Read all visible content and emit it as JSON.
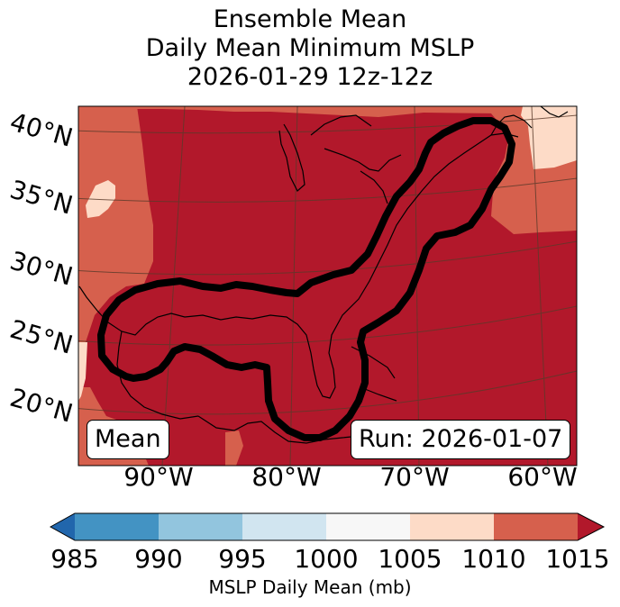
{
  "title": {
    "line1": "Ensemble Mean",
    "line2": "Daily Mean Minimum MSLP",
    "line3": "2026-01-29 12z-12z"
  },
  "map": {
    "lat_labels": [
      "40°N",
      "35°N",
      "30°N",
      "25°N",
      "20°N"
    ],
    "lon_labels": [
      "90°W",
      "80°W",
      "70°W",
      "60°W"
    ],
    "mean_box": "Mean",
    "run_box": "Run: 2026-01-07",
    "contour_color": "#000000",
    "field_colors": {
      "1010_1015": "#b2182b",
      "1005_1010": "#d6604d",
      "1000_1005": "#fddbc7"
    }
  },
  "colorbar": {
    "label": "MSLP Daily Mean (mb)",
    "ticks": [
      "985",
      "990",
      "995",
      "1000",
      "1005",
      "1010",
      "1015"
    ],
    "colors": [
      "#4393c3",
      "#92c5de",
      "#d1e5f0",
      "#f7f7f7",
      "#fddbc7",
      "#d6604d"
    ],
    "under_color": "#2166ac",
    "over_color": "#b2182b"
  }
}
